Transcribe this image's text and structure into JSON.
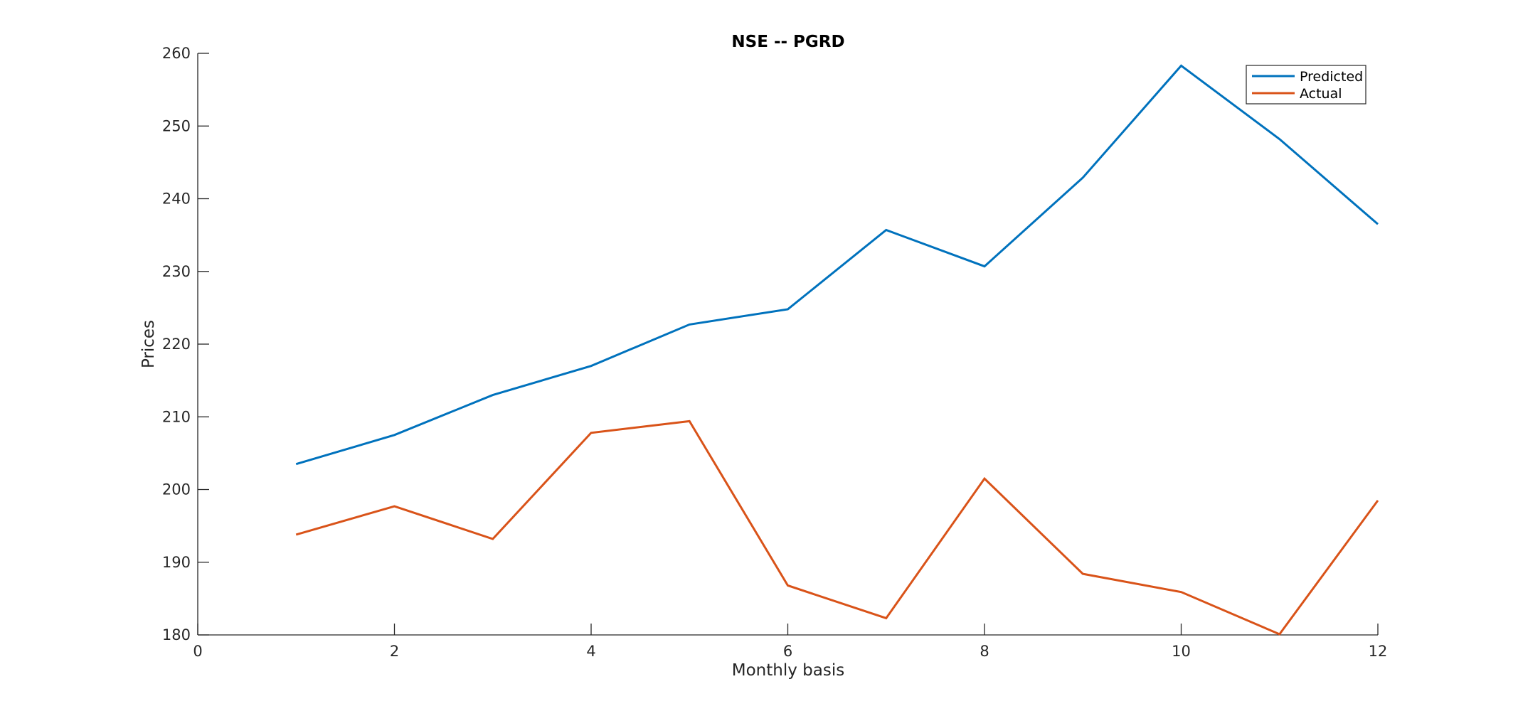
{
  "chart_data": {
    "type": "line",
    "title": "NSE -- PGRD",
    "xlabel": "Monthly basis",
    "ylabel": "Prices",
    "xlim": [
      0,
      12
    ],
    "ylim": [
      180,
      260
    ],
    "xticks": [
      0,
      2,
      4,
      6,
      8,
      10,
      12
    ],
    "yticks": [
      180,
      190,
      200,
      210,
      220,
      230,
      240,
      250,
      260
    ],
    "grid": false,
    "legend_position": "top-right",
    "x": [
      1,
      2,
      3,
      4,
      5,
      6,
      7,
      8,
      9,
      10,
      11,
      12
    ],
    "series": [
      {
        "name": "Predicted",
        "color": "#0072BD",
        "values": [
          203.5,
          207.5,
          213.0,
          217.0,
          222.7,
          224.8,
          235.7,
          230.7,
          242.9,
          258.3,
          248.2,
          236.5
        ]
      },
      {
        "name": "Actual",
        "color": "#D95319",
        "values": [
          193.8,
          197.7,
          193.2,
          207.8,
          209.4,
          186.8,
          182.3,
          201.5,
          188.4,
          185.9,
          180.1,
          198.5
        ]
      }
    ]
  }
}
